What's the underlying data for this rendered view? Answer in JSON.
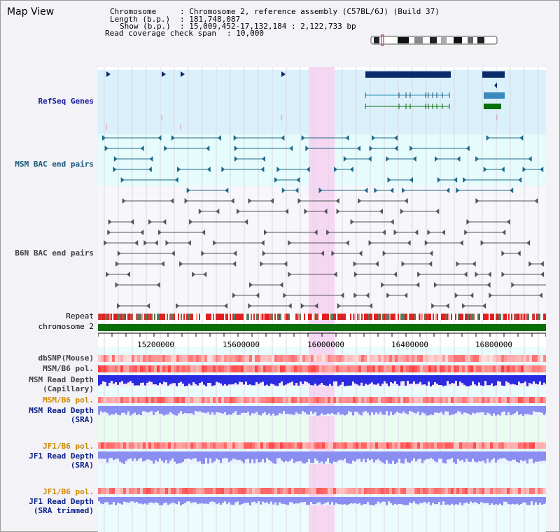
{
  "title": "Map View",
  "header": {
    "chromosome_label": "Chromosome",
    "chromosome_value": ": Chromosome 2, reference assembly (C57BL/6J) (Build 37)",
    "length_label": "Length (b.p.)",
    "length_value": ": 181,748,087",
    "show_label": "Show (b.p.)",
    "show_value": ": 15,009,452-17,132,184 : 2,122,733 bp",
    "coverage_label": "Read coverage check span",
    "coverage_value": ": 10,000"
  },
  "tracks": {
    "refseq": "RefSeq Genes",
    "msm_bac": "MSM BAC end pairs",
    "b6n_bac": "B6N BAC end pairs",
    "repeat": "Repeat",
    "chromosome": "chromosome 2",
    "dbsnp": "dbSNP(Mouse)",
    "msm_pol": "MSM/B6 pol.",
    "msm_depth_cap_1": "MSM Read Depth",
    "msm_depth_cap_2": "(Capillary)",
    "msm_pol2": "MSM/B6 pol.",
    "msm_depth_sra_1": "MSM Read Depth",
    "msm_depth_sra_2": "(SRA)",
    "jf1_pol": "JF1/B6 pol.",
    "jf1_depth_1": "JF1 Read Depth",
    "jf1_depth_2": "(SRA)",
    "jf1_pol2": "JF1/B6 pol.",
    "jf1_trim_1": "JF1 Read Depth",
    "jf1_trim_2": "(SRA trimmed)"
  },
  "axis": {
    "ticks": [
      "15200000",
      "15600000",
      "16000000",
      "16400000",
      "16800000"
    ]
  },
  "colors": {
    "refseq_bg": "#daf0fb",
    "msm_bg": "#e6fbfc",
    "highlight": "#f7d6f3",
    "msm_bac": "#1e6a8a",
    "b6n_bac": "#555555",
    "chromosome": "#0a6e0a",
    "depth_blue": "#2a2ae0",
    "depth_light": "#8a8ef0"
  }
}
